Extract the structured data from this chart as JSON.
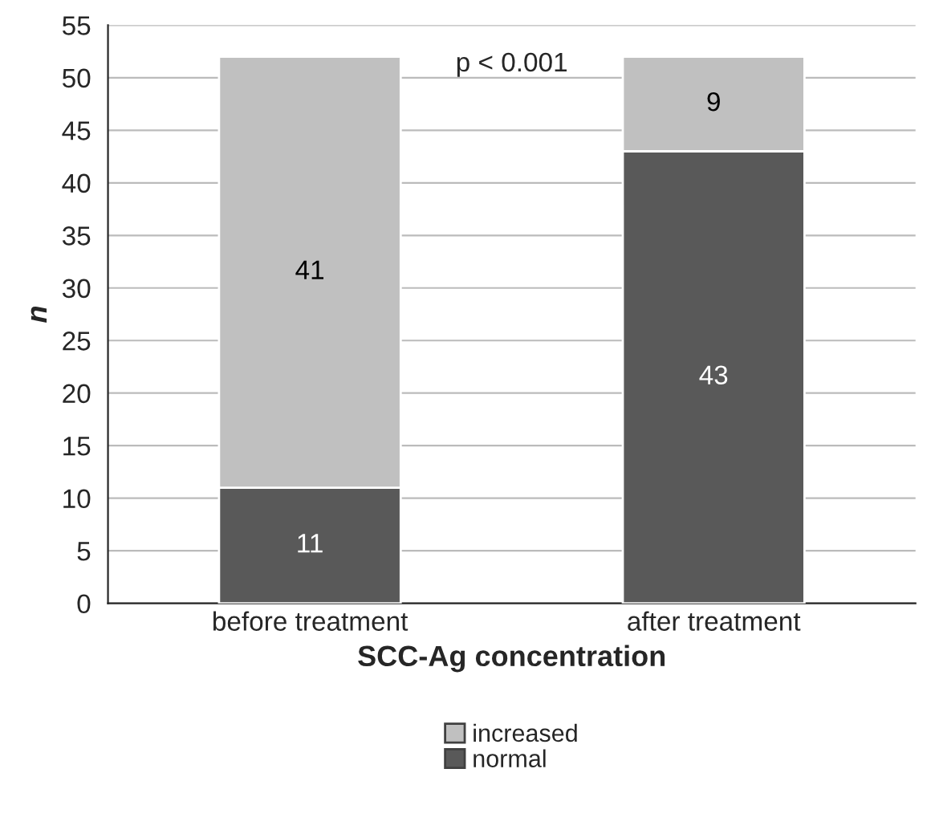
{
  "chart_data": {
    "type": "bar",
    "stacked": true,
    "xlabel": "SCC-Ag concentration",
    "ylabel": "n",
    "categories": [
      "before treatment",
      "after treatment"
    ],
    "series": [
      {
        "name": "normal",
        "color": "#595959",
        "values": [
          11,
          43
        ]
      },
      {
        "name": "increased",
        "color": "#c0c0c0",
        "values": [
          41,
          9
        ]
      }
    ],
    "ylim": [
      0,
      55
    ],
    "yticks": [
      0,
      5,
      10,
      15,
      20,
      25,
      30,
      35,
      40,
      45,
      50,
      55
    ],
    "grid": "y",
    "legend": "bottom",
    "data_labels": true,
    "annotations": [
      "p < 0.001"
    ]
  }
}
